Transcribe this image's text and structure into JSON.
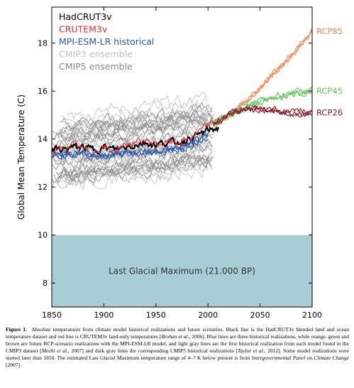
{
  "chart_data": {
    "type": "line",
    "ylabel": "Global Mean Temperature (C)",
    "xlim": [
      1850,
      2100
    ],
    "ylim": [
      7,
      19.5
    ],
    "xticks": [
      1850,
      1900,
      1950,
      2000,
      2050,
      2100
    ],
    "yticks": [
      8,
      10,
      12,
      14,
      16,
      18
    ],
    "legend": [
      {
        "name": "HadCRUT3v",
        "color": "#000000"
      },
      {
        "name": "CRUTEM3v",
        "color": "#e8282a"
      },
      {
        "name": "MPI-ESM-LR historical",
        "color": "#2b59b0"
      },
      {
        "name": "CMIP3 ensemble",
        "color": "#bfbfbf"
      },
      {
        "name": "CMIP5 ensemble",
        "color": "#8a8a8a"
      }
    ],
    "shaded_band": {
      "label": "Last Glacial Maximum (21.000 BP)",
      "y_from": 7,
      "y_to": 10,
      "color": "#a9cdd5"
    },
    "series": [
      {
        "name": "HadCRUT3v",
        "color": "#000000",
        "x": [
          1850,
          1860,
          1870,
          1880,
          1890,
          1900,
          1910,
          1920,
          1930,
          1940,
          1950,
          1960,
          1970,
          1980,
          1990,
          2000,
          2010
        ],
        "y": [
          13.6,
          13.6,
          13.7,
          13.7,
          13.6,
          13.7,
          13.6,
          13.7,
          13.8,
          13.9,
          13.8,
          13.9,
          13.9,
          14.0,
          14.2,
          14.4,
          14.5
        ]
      },
      {
        "name": "CRUTEM3v",
        "color": "#e8282a",
        "x": [
          1850,
          1860,
          1870,
          1880,
          1890,
          1900,
          1910,
          1920,
          1930,
          1940,
          1950,
          1960,
          1970,
          1980,
          1990,
          2000,
          2010
        ],
        "y": [
          13.5,
          13.6,
          13.8,
          13.6,
          13.5,
          13.7,
          13.5,
          13.8,
          13.9,
          14.0,
          13.8,
          13.9,
          13.9,
          14.0,
          14.3,
          14.6,
          14.8
        ]
      },
      {
        "name": "MPI-ESM-LR historical",
        "color": "#2b59b0",
        "x": [
          1850,
          1875,
          1900,
          1925,
          1950,
          1975,
          2000
        ],
        "y": [
          13.3,
          13.4,
          13.3,
          13.4,
          13.5,
          13.6,
          14.2
        ]
      },
      {
        "name": "RCP85",
        "color": "#f5874f",
        "x": [
          2005,
          2020,
          2040,
          2060,
          2080,
          2100
        ],
        "y": [
          14.6,
          15.0,
          15.7,
          16.6,
          17.5,
          18.5
        ]
      },
      {
        "name": "RCP45",
        "color": "#5cc85c",
        "x": [
          2005,
          2020,
          2040,
          2060,
          2080,
          2100
        ],
        "y": [
          14.6,
          15.0,
          15.4,
          15.7,
          15.9,
          16.0
        ]
      },
      {
        "name": "RCP26",
        "color": "#8a1a2a",
        "x": [
          2005,
          2020,
          2040,
          2060,
          2080,
          2100
        ],
        "y": [
          14.6,
          15.0,
          15.3,
          15.2,
          15.1,
          15.1
        ]
      }
    ],
    "series_labels": [
      "RCP85",
      "RCP45",
      "RCP26"
    ]
  },
  "caption": {
    "fig_label": "Figure 1.",
    "part1": "Absolute temperatures from climate model historical realizations and future scenarios. Black line is the HadCRUT3v blended land and ocean temperature dataset and red line is CRUTEM3v land-only temperatures [",
    "cite1": "Brohan et al.",
    "part2": ", 2006]. Blue lines are three historical realizations, while orange, green and brown are future RCP-scenario realizations with the MPI-ESM-LR model, and light gray lines are the first historical realization from each model found in the CMIP3 dataset [",
    "cite2": "Meehl et al.",
    "part3": ", 2007] and dark gray lines the corresponding CMIP5 historical realizations [",
    "cite3": "Taylor et al.",
    "part4": ", 2012]. Some model realizations were started later than 1850. The estimated Last Glacial Maximum temperature range of 4–7 K below present is from ",
    "cite4": "Intergovernmental Panel on Climate Change",
    "part5": " [2007]."
  }
}
